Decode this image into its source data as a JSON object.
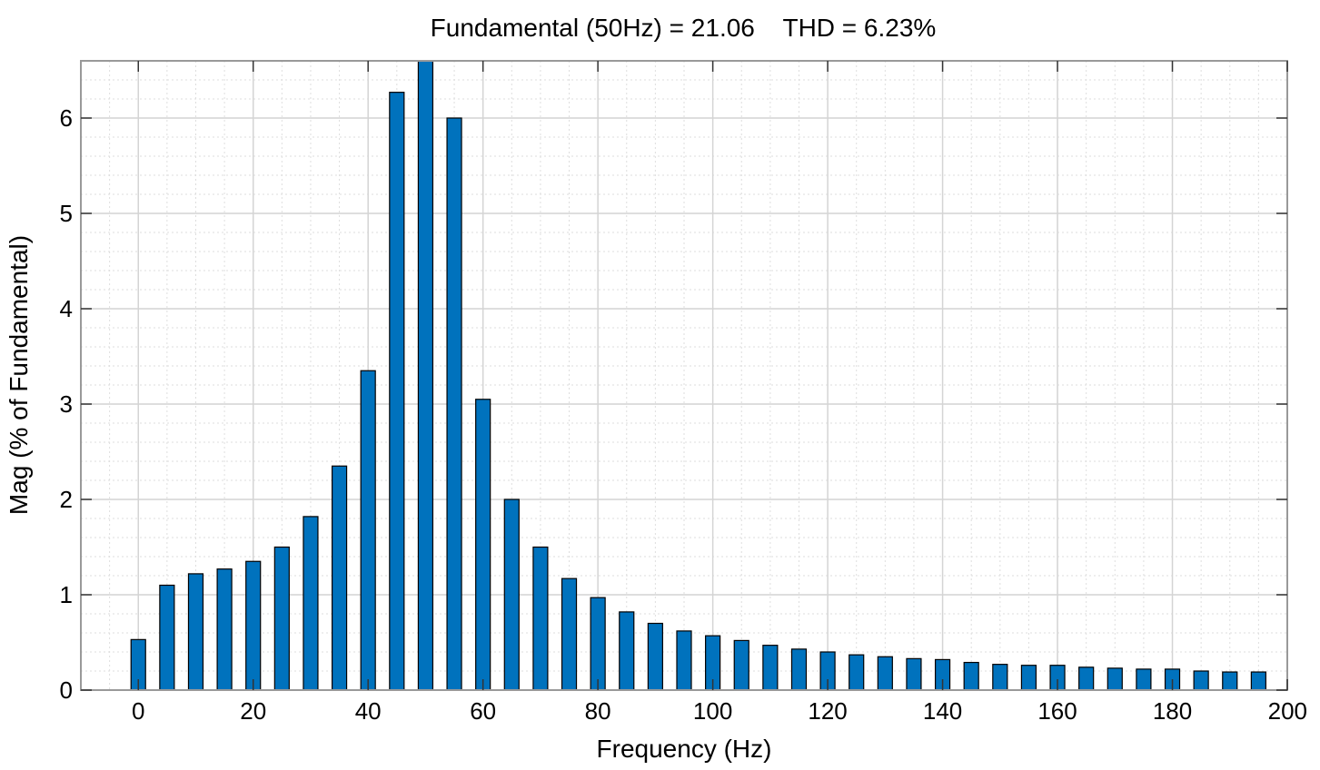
{
  "chart_data": {
    "type": "bar",
    "title": "Fundamental (50Hz) = 21.06    THD = 6.23%",
    "xlabel": "Frequency (Hz)",
    "ylabel": "Mag (% of Fundamental)",
    "xlim": [
      -10,
      200
    ],
    "ylim": [
      0,
      6.6
    ],
    "grid": true,
    "minor_grid": true,
    "xticks": [
      0,
      20,
      40,
      60,
      80,
      100,
      120,
      140,
      160,
      180,
      200
    ],
    "yticks": [
      0,
      1,
      2,
      3,
      4,
      5,
      6
    ],
    "bar_color": "#0072bd",
    "bar_edge_color": "#000000",
    "x": [
      0,
      5,
      10,
      15,
      20,
      25,
      30,
      35,
      40,
      45,
      50,
      55,
      60,
      65,
      70,
      75,
      80,
      85,
      90,
      95,
      100,
      105,
      110,
      115,
      120,
      125,
      130,
      135,
      140,
      145,
      150,
      155,
      160,
      165,
      170,
      175,
      180,
      185,
      190,
      195
    ],
    "values": [
      0.53,
      1.1,
      1.22,
      1.27,
      1.35,
      1.5,
      1.82,
      2.35,
      3.35,
      6.27,
      6.6,
      6.0,
      3.05,
      2.0,
      1.5,
      1.17,
      0.97,
      0.82,
      0.7,
      0.62,
      0.57,
      0.52,
      0.47,
      0.43,
      0.4,
      0.37,
      0.35,
      0.33,
      0.32,
      0.29,
      0.27,
      0.26,
      0.26,
      0.24,
      0.23,
      0.22,
      0.22,
      0.2,
      0.19,
      0.19
    ]
  }
}
